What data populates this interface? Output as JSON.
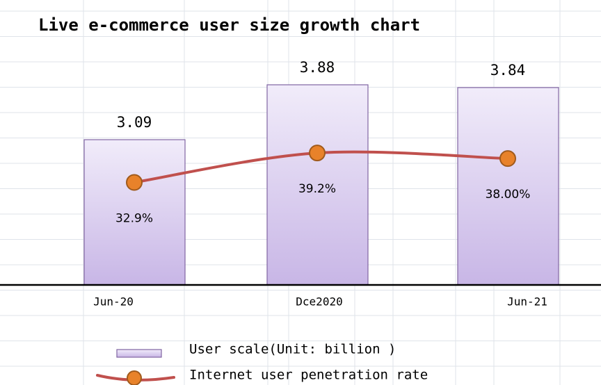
{
  "chart_data": {
    "type": "bar",
    "title": "Live e-commerce user size growth chart",
    "categories": [
      "Jun-20",
      "Dce2020",
      "Jun-21"
    ],
    "series": [
      {
        "name": "User scale(Unit: billion )",
        "color": "#d9ccef",
        "values": [
          3.09,
          3.88,
          3.84
        ]
      },
      {
        "name": "Internet user penetration rate",
        "color": "#c0504d",
        "type": "line",
        "axis": "y2",
        "values": [
          32.9,
          39.2,
          38
        ],
        "value_labels": [
          "32.9%",
          "39.2%",
          "38.00%"
        ]
      }
    ],
    "ylim": [
      1,
      4.3
    ],
    "y2lim": [
      11,
      60
    ]
  }
}
